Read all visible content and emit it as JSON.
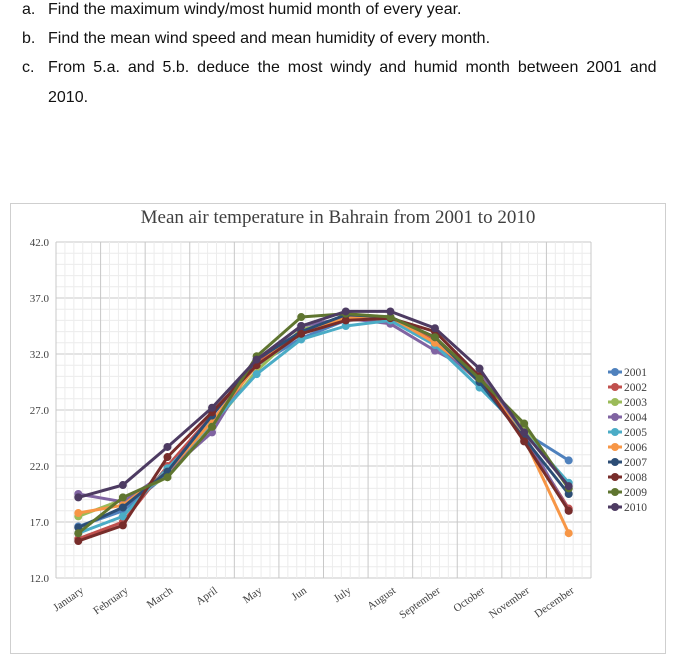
{
  "questions": [
    {
      "label": "a.",
      "text": "Find the maximum windy/most humid month of every year."
    },
    {
      "label": "b.",
      "text": "Find the mean wind speed and mean humidity of every month."
    },
    {
      "label": "c.",
      "text": "From 5.a. and 5.b. deduce the most windy and humid month between 2001 and",
      "continuation": "2010."
    }
  ],
  "chart_data": {
    "type": "line",
    "title": "Mean air temperature in Bahrain from 2001 to 2010",
    "xlabel": "",
    "ylabel": "",
    "ylim": [
      12.0,
      42.0
    ],
    "y_ticks": [
      "12.0",
      "17.0",
      "22.0",
      "27.0",
      "32.0",
      "37.0",
      "42.0"
    ],
    "grid": true,
    "legend": "right",
    "categories": [
      "January",
      "February",
      "March",
      "April",
      "May",
      "Jun",
      "July",
      "August",
      "September",
      "October",
      "November",
      "December"
    ],
    "series": [
      {
        "name": "2001",
        "color": "#4f81bd",
        "values": [
          16.6,
          18.0,
          21.3,
          26.0,
          31.0,
          33.4,
          35.0,
          35.2,
          33.0,
          29.5,
          25.0,
          22.5
        ]
      },
      {
        "name": "2002",
        "color": "#c0504d",
        "values": [
          15.5,
          17.0,
          22.0,
          26.5,
          31.3,
          34.0,
          35.4,
          35.0,
          33.2,
          29.5,
          24.5,
          18.2
        ]
      },
      {
        "name": "2003",
        "color": "#9bbb59",
        "values": [
          17.5,
          19.0,
          21.0,
          25.5,
          30.5,
          34.2,
          35.0,
          35.3,
          33.5,
          29.8,
          25.6,
          20.0
        ]
      },
      {
        "name": "2004",
        "color": "#8064a2",
        "values": [
          19.5,
          18.8,
          21.5,
          25.0,
          31.5,
          34.5,
          35.2,
          34.7,
          32.3,
          30.2,
          24.8,
          18.0
        ]
      },
      {
        "name": "2005",
        "color": "#4bacc6",
        "values": [
          16.0,
          17.5,
          21.8,
          25.8,
          30.2,
          33.3,
          34.5,
          35.0,
          32.8,
          29.0,
          25.0,
          20.5
        ]
      },
      {
        "name": "2006",
        "color": "#f79646",
        "values": [
          17.8,
          18.5,
          21.5,
          26.0,
          31.0,
          34.0,
          35.2,
          35.3,
          33.0,
          30.0,
          24.5,
          16.0
        ]
      },
      {
        "name": "2007",
        "color": "#2c4d75",
        "values": [
          16.5,
          18.3,
          21.5,
          26.5,
          31.5,
          34.0,
          35.5,
          35.3,
          33.5,
          29.5,
          24.5,
          19.5
        ]
      },
      {
        "name": "2008",
        "color": "#772c2a",
        "values": [
          15.3,
          16.7,
          22.8,
          26.8,
          31.0,
          33.8,
          35.0,
          35.2,
          34.0,
          30.0,
          24.2,
          18.0
        ]
      },
      {
        "name": "2009",
        "color": "#5f7530",
        "values": [
          16.0,
          19.2,
          21.0,
          25.5,
          31.8,
          35.3,
          35.6,
          35.3,
          33.5,
          29.8,
          25.8,
          20.0
        ]
      },
      {
        "name": "2010",
        "color": "#4d3b62",
        "values": [
          19.2,
          20.3,
          23.7,
          27.2,
          31.5,
          34.5,
          35.8,
          35.8,
          34.3,
          30.7,
          25.0,
          20.2
        ]
      }
    ]
  }
}
